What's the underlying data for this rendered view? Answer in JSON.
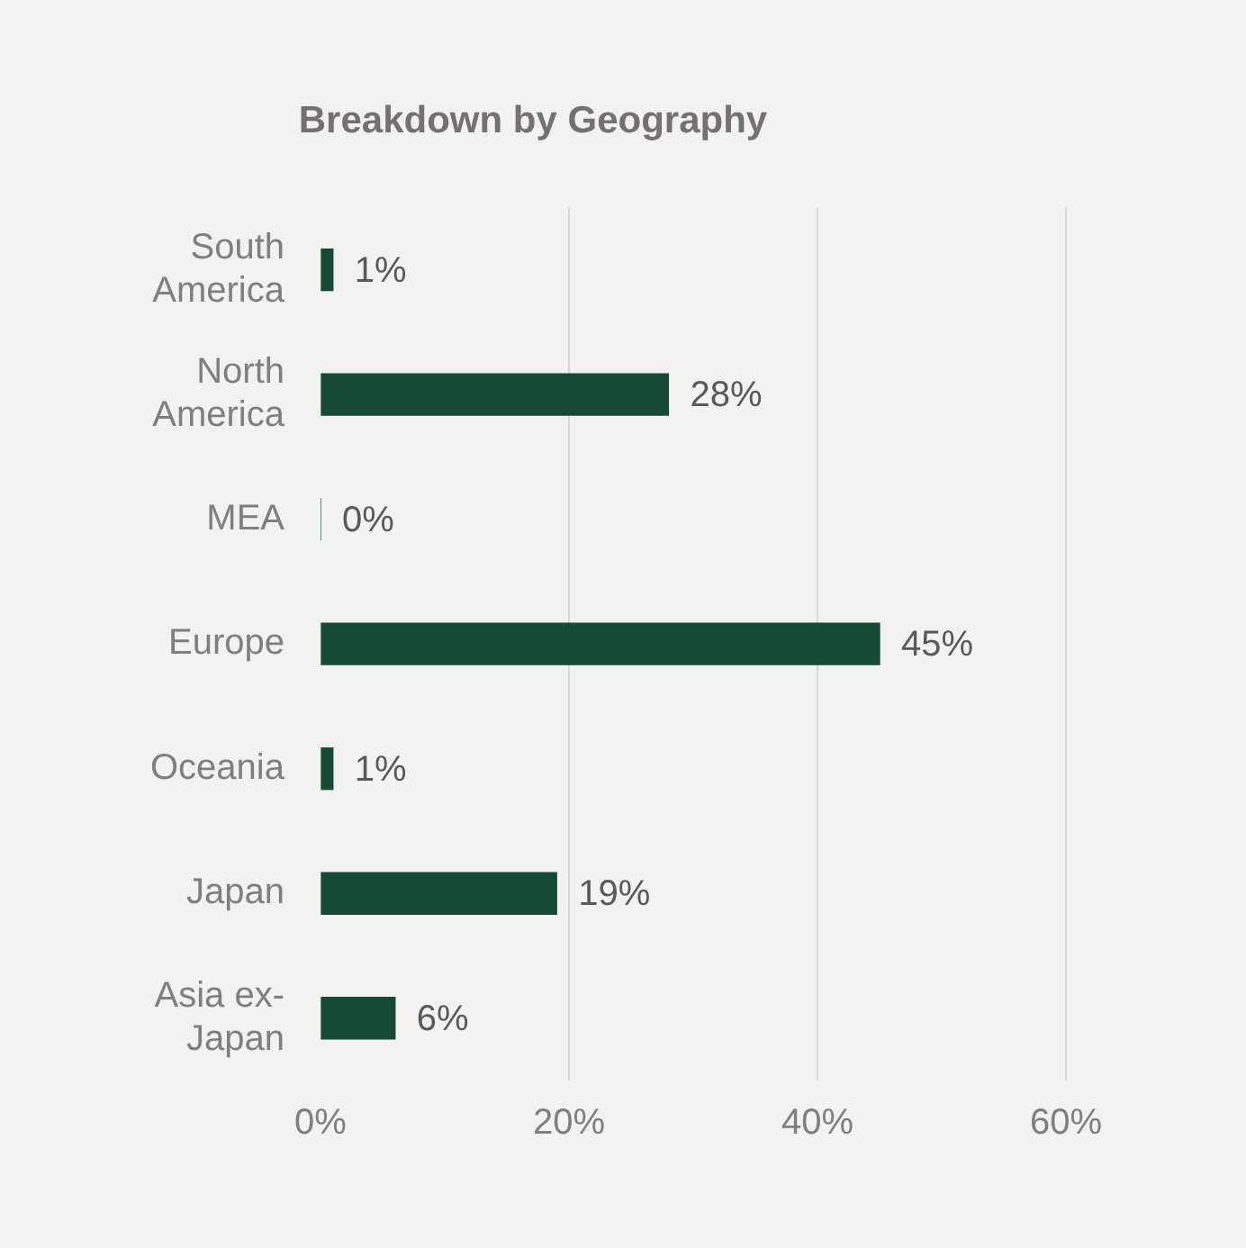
{
  "chart_data": {
    "type": "bar",
    "orientation": "horizontal",
    "title": "Breakdown by Geography",
    "categories": [
      "South America",
      "North America",
      "MEA",
      "Europe",
      "Oceania",
      "Japan",
      "Asia ex-Japan"
    ],
    "values": [
      1,
      28,
      0,
      45,
      1,
      19,
      6
    ],
    "value_labels": [
      "1%",
      "28%",
      "0%",
      "45%",
      "1%",
      "19%",
      "6%"
    ],
    "color": "#174a35",
    "xlim": [
      0,
      60
    ],
    "xticks": [
      {
        "value": 0,
        "label": "0%"
      },
      {
        "value": 20,
        "label": "20%"
      },
      {
        "value": 40,
        "label": "40%"
      },
      {
        "value": 60,
        "label": "60%"
      }
    ],
    "grid": "x",
    "legend": false
  }
}
